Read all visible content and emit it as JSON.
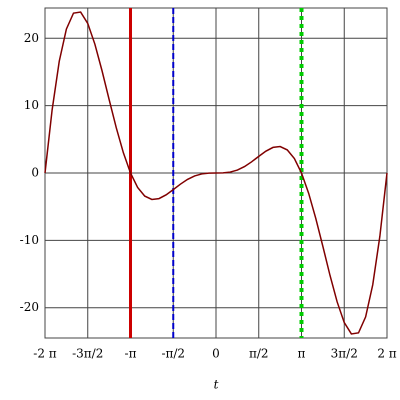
{
  "chart_data": {
    "type": "line",
    "xlabel": "t",
    "x": [
      -6.2832,
      -6.0214,
      -5.7596,
      -5.4978,
      -5.236,
      -4.9742,
      -4.7124,
      -4.4506,
      -4.1888,
      -3.927,
      -3.6652,
      -3.4034,
      -3.1416,
      -2.8798,
      -2.618,
      -2.3562,
      -2.0944,
      -1.8326,
      -1.5708,
      -1.309,
      -1.0472,
      -0.7854,
      -0.5236,
      -0.2618,
      0,
      0.2618,
      0.5236,
      0.7854,
      1.0472,
      1.309,
      1.5708,
      1.8326,
      2.0944,
      2.3562,
      2.618,
      2.8798,
      3.1416,
      3.4034,
      3.6652,
      3.927,
      4.1888,
      4.4506,
      4.7124,
      4.9742,
      5.236,
      5.4978,
      5.7596,
      6.0214,
      6.2832
    ],
    "series": [
      {
        "color": "#800000",
        "values": [
          0,
          9.38,
          16.59,
          21.37,
          23.74,
          23.9,
          22.21,
          19.13,
          15.2,
          10.9,
          6.72,
          3,
          0,
          -2.15,
          -3.43,
          -3.93,
          -3.8,
          -3.24,
          -2.47,
          -1.66,
          -0.95,
          -0.44,
          -0.14,
          -0.02,
          0,
          0.02,
          0.14,
          0.44,
          0.95,
          1.66,
          2.47,
          3.24,
          3.8,
          3.93,
          3.43,
          2.15,
          0,
          -3,
          -6.72,
          -10.9,
          -15.2,
          -19.13,
          -22.21,
          -23.9,
          -23.74,
          -21.37,
          -16.59,
          -9.38,
          0
        ]
      }
    ],
    "vlines": [
      {
        "value": -3.1416,
        "color": "#cc0000",
        "style": "solid"
      },
      {
        "value": -1.5708,
        "color": "#0000cc",
        "style": "dash"
      },
      {
        "value": 3.1416,
        "color": "#00cc00",
        "style": "dot"
      }
    ],
    "xlim": [
      -6.2832,
      6.2832
    ],
    "ylim": [
      -24.5,
      24.5
    ],
    "xticks": [
      {
        "value": -6.2832,
        "label": "-2 π"
      },
      {
        "value": -4.7124,
        "label": "-3π/2"
      },
      {
        "value": -3.1416,
        "label": "-π"
      },
      {
        "value": -1.5708,
        "label": "-π/2"
      },
      0,
      {
        "value": 1.5708,
        "label": "π/2"
      },
      {
        "value": 3.1416,
        "label": "π"
      },
      {
        "value": 4.7124,
        "label": "3π/2"
      },
      {
        "value": 6.2832,
        "label": "2 π"
      }
    ],
    "yticks": [
      -20,
      -10,
      0,
      10,
      20
    ],
    "grid": true
  }
}
